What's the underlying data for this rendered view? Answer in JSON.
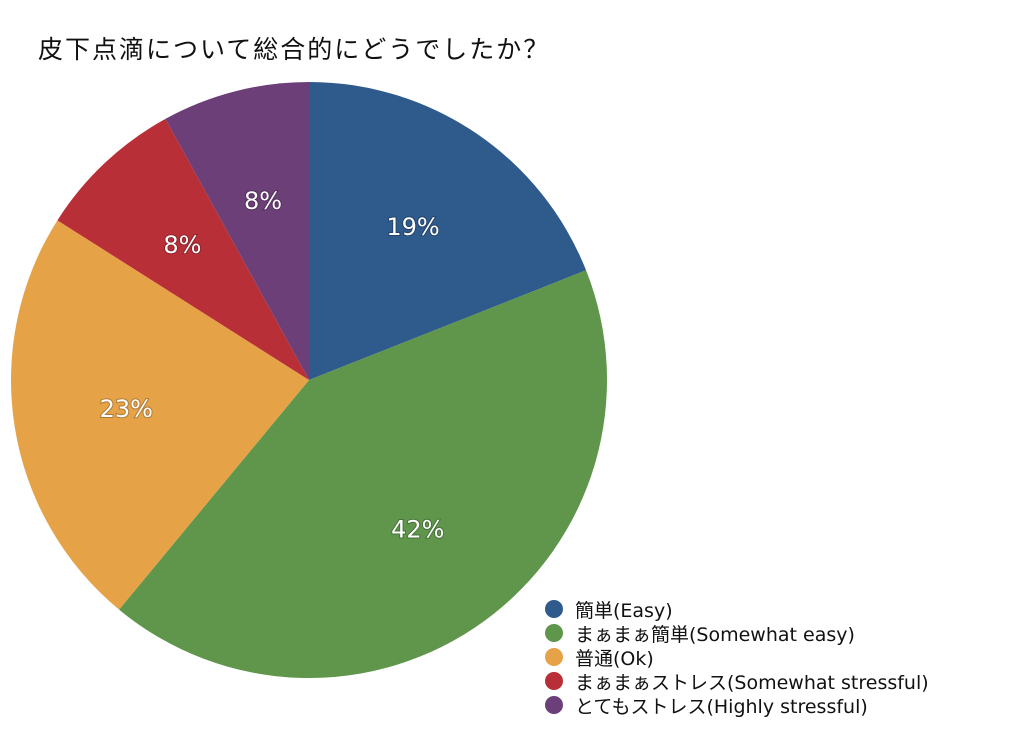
{
  "title": "皮下点滴について総合的にどうでしたか？",
  "chart_data": {
    "type": "pie",
    "title": "皮下点滴について総合的にどうでしたか？",
    "categories": [
      "簡単(Easy)",
      "まぁまぁ簡単(Somewhat easy)",
      "普通(Ok)",
      "まぁまぁストレス(Somewhat stressful)",
      "とてもストレス(Highly stressful)"
    ],
    "values": [
      19,
      42,
      23,
      8,
      8
    ],
    "labels": [
      "19%",
      "42%",
      "23%",
      "8%",
      "8%"
    ],
    "colors": [
      "#2f5a8c",
      "#5f964b",
      "#e6a247",
      "#b92f37",
      "#6c3f78"
    ],
    "start_angle_deg": 0,
    "direction": "clockwise",
    "legend_position": "bottom-right"
  }
}
